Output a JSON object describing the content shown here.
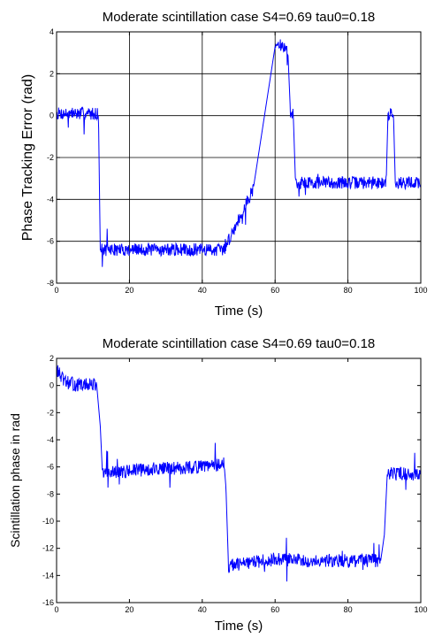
{
  "chart_data": [
    {
      "type": "line",
      "title": "Moderate scintillation case S4=0.69 tau0=0.18",
      "xlabel": "Time (s)",
      "ylabel": "Phase Tracking Error (rad)",
      "xlim": [
        0,
        100
      ],
      "ylim": [
        -8,
        4
      ],
      "xticks": [
        0,
        20,
        40,
        60,
        80,
        100
      ],
      "yticks": [
        -8,
        -6,
        -4,
        -2,
        0,
        2,
        4
      ],
      "grid": true,
      "legend": "none",
      "series": [
        {
          "color": "#0000ff",
          "points": [
            [
              0,
              0.1
            ],
            [
              11.5,
              0.1
            ],
            [
              12,
              -6.4
            ],
            [
              46,
              -6.4
            ],
            [
              54,
              -3.5
            ],
            [
              60,
              3.3
            ],
            [
              61,
              3.4
            ],
            [
              63.5,
              3.1
            ],
            [
              64.2,
              0.2
            ],
            [
              65,
              0.0
            ],
            [
              65.6,
              -3.2
            ],
            [
              90.5,
              -3.2
            ],
            [
              91,
              0.1
            ],
            [
              92.5,
              0.1
            ],
            [
              93,
              -3.2
            ],
            [
              100,
              -3.2
            ]
          ],
          "noise_amplitude": 0.3
        }
      ]
    },
    {
      "type": "line",
      "title": "Moderate scintillation case S4=0.69 tau0=0.18",
      "xlabel": "Time (s)",
      "ylabel": "Scintillation phase in rad",
      "xlim": [
        0,
        100
      ],
      "ylim": [
        -16,
        2
      ],
      "xticks": [
        0,
        20,
        40,
        60,
        80,
        100
      ],
      "yticks": [
        -16,
        -14,
        -12,
        -10,
        -8,
        -6,
        -4,
        -2,
        0,
        2
      ],
      "grid": false,
      "legend": "none",
      "series": [
        {
          "color": "#0000ff",
          "points": [
            [
              0,
              1.2
            ],
            [
              2,
              0.3
            ],
            [
              6,
              0.0
            ],
            [
              11,
              0.1
            ],
            [
              12,
              -3.0
            ],
            [
              12.6,
              -6.5
            ],
            [
              20,
              -6.3
            ],
            [
              30,
              -6.1
            ],
            [
              40,
              -6.0
            ],
            [
              46,
              -5.8
            ],
            [
              46.5,
              -7.5
            ],
            [
              47.2,
              -13.3
            ],
            [
              60,
              -12.8
            ],
            [
              75,
              -12.9
            ],
            [
              89,
              -12.9
            ],
            [
              90,
              -11.0
            ],
            [
              90.8,
              -6.5
            ],
            [
              100,
              -6.5
            ]
          ],
          "noise_amplitude": 0.5
        }
      ]
    }
  ]
}
